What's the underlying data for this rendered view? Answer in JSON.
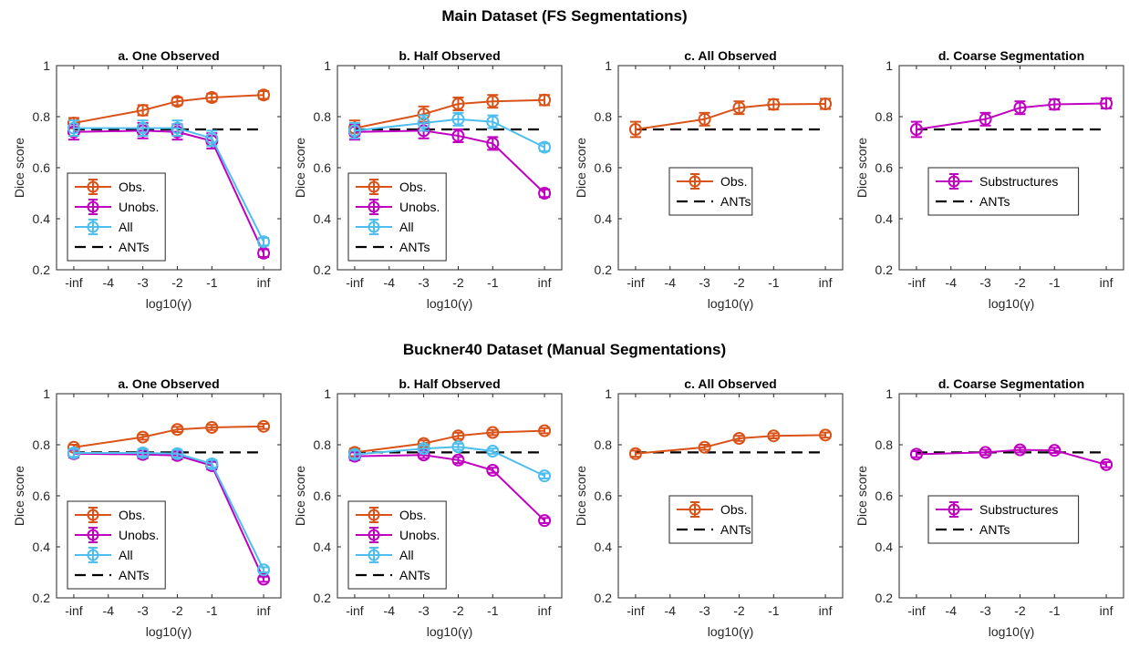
{
  "figure": {
    "rows": [
      {
        "title": "Main Dataset (FS Segmentations)",
        "charts": [
          {
            "type": "line",
            "title": "a. One Observed",
            "categories": [
              "-inf",
              "-4",
              "-3",
              "-2",
              "-1",
              "inf"
            ],
            "x": [
              -5,
              -4,
              -3,
              -2,
              -1,
              0.5
            ],
            "xlabel": "log10(γ)",
            "ylabel": "Dice score",
            "ylim": [
              0.2,
              1
            ],
            "yticks": [
              "0.2",
              "0.4",
              "0.6",
              "0.8",
              "1"
            ],
            "baseline": {
              "name": "ANTs",
              "value": 0.75
            },
            "legend": "lower-left",
            "series": [
              {
                "name": "Obs.",
                "color": "#D95319",
                "x": [
                  -5,
                  -3,
                  -2,
                  -1,
                  0.5
                ],
                "values": [
                  0.775,
                  0.825,
                  0.86,
                  0.875,
                  0.885
                ],
                "errors": [
                  0.02,
                  0.02,
                  0.015,
                  0.015,
                  0.015
                ]
              },
              {
                "name": "Unobs.",
                "color": "#C000C0",
                "x": [
                  -5,
                  -3,
                  -2,
                  -1,
                  0.5
                ],
                "values": [
                  0.74,
                  0.745,
                  0.74,
                  0.705,
                  0.265
                ],
                "errors": [
                  0.03,
                  0.03,
                  0.03,
                  0.03,
                  0.015
                ]
              },
              {
                "name": "All",
                "color": "#4DBEEE",
                "x": [
                  -5,
                  -3,
                  -2,
                  -1,
                  0.5
                ],
                "values": [
                  0.755,
                  0.755,
                  0.755,
                  0.715,
                  0.31
                ],
                "errors": [
                  0.03,
                  0.03,
                  0.03,
                  0.03,
                  0.015
                ]
              }
            ]
          },
          {
            "type": "line",
            "title": "b. Half Observed",
            "categories": [
              "-inf",
              "-4",
              "-3",
              "-2",
              "-1",
              "inf"
            ],
            "x": [
              -5,
              -4,
              -3,
              -2,
              -1,
              0.5
            ],
            "xlabel": "log10(γ)",
            "ylabel": "Dice score",
            "ylim": [
              0.2,
              1
            ],
            "yticks": [
              "0.2",
              "0.4",
              "0.6",
              "0.8",
              "1"
            ],
            "baseline": {
              "name": "ANTs",
              "value": 0.75
            },
            "legend": "lower-left",
            "series": [
              {
                "name": "Obs.",
                "color": "#D95319",
                "x": [
                  -5,
                  -3,
                  -2,
                  -1,
                  0.5
                ],
                "values": [
                  0.755,
                  0.81,
                  0.85,
                  0.86,
                  0.865
                ],
                "errors": [
                  0.03,
                  0.03,
                  0.025,
                  0.025,
                  0.02
                ]
              },
              {
                "name": "Unobs.",
                "color": "#C000C0",
                "x": [
                  -5,
                  -3,
                  -2,
                  -1,
                  0.5
                ],
                "values": [
                  0.74,
                  0.745,
                  0.725,
                  0.695,
                  0.5
                ],
                "errors": [
                  0.03,
                  0.03,
                  0.025,
                  0.025,
                  0.015
                ]
              },
              {
                "name": "All",
                "color": "#4DBEEE",
                "x": [
                  -5,
                  -3,
                  -2,
                  -1,
                  0.5
                ],
                "values": [
                  0.745,
                  0.775,
                  0.79,
                  0.78,
                  0.68
                ],
                "errors": [
                  0.03,
                  0.03,
                  0.025,
                  0.025,
                  0.015
                ]
              }
            ]
          },
          {
            "type": "line",
            "title": "c. All Observed",
            "categories": [
              "-inf",
              "-4",
              "-3",
              "-2",
              "-1",
              "inf"
            ],
            "x": [
              -5,
              -4,
              -3,
              -2,
              -1,
              0.5
            ],
            "xlabel": "log10(γ)",
            "ylabel": "Dice score",
            "ylim": [
              0.2,
              1
            ],
            "yticks": [
              "0.2",
              "0.4",
              "0.6",
              "0.8",
              "1"
            ],
            "baseline": {
              "name": "ANTs",
              "value": 0.75
            },
            "legend": "lower-left",
            "series": [
              {
                "name": "Obs.",
                "color": "#D95319",
                "x": [
                  -5,
                  -3,
                  -2,
                  -1,
                  0.5
                ],
                "values": [
                  0.75,
                  0.79,
                  0.835,
                  0.848,
                  0.85
                ],
                "errors": [
                  0.03,
                  0.025,
                  0.025,
                  0.02,
                  0.02
                ]
              }
            ]
          },
          {
            "type": "line",
            "title": "d. Coarse Segmentation",
            "categories": [
              "-inf",
              "-4",
              "-3",
              "-2",
              "-1",
              "inf"
            ],
            "x": [
              -5,
              -4,
              -3,
              -2,
              -1,
              0.5
            ],
            "xlabel": "log10(γ)",
            "ylabel": "Dice score",
            "ylim": [
              0.2,
              1
            ],
            "yticks": [
              "0.2",
              "0.4",
              "0.6",
              "0.8",
              "1"
            ],
            "baseline": {
              "name": "ANTs",
              "value": 0.75
            },
            "legend": "lower-left",
            "series": [
              {
                "name": "Substructures",
                "color": "#C000C0",
                "x": [
                  -5,
                  -3,
                  -2,
                  -1,
                  0.5
                ],
                "values": [
                  0.75,
                  0.79,
                  0.835,
                  0.848,
                  0.852
                ],
                "errors": [
                  0.03,
                  0.025,
                  0.025,
                  0.02,
                  0.02
                ]
              }
            ]
          }
        ]
      },
      {
        "title": "Buckner40 Dataset (Manual Segmentations)",
        "charts": [
          {
            "type": "line",
            "title": "a. One Observed",
            "categories": [
              "-inf",
              "-4",
              "-3",
              "-2",
              "-1",
              "inf"
            ],
            "x": [
              -5,
              -4,
              -3,
              -2,
              -1,
              0.5
            ],
            "xlabel": "log10(γ)",
            "ylabel": "Dice score",
            "ylim": [
              0.2,
              1
            ],
            "yticks": [
              "0.2",
              "0.4",
              "0.6",
              "0.8",
              "1"
            ],
            "baseline": {
              "name": "ANTs",
              "value": 0.77
            },
            "legend": "lower-left",
            "series": [
              {
                "name": "Obs.",
                "color": "#D95319",
                "x": [
                  -5,
                  -3,
                  -2,
                  -1,
                  0.5
                ],
                "values": [
                  0.79,
                  0.83,
                  0.86,
                  0.868,
                  0.872
                ],
                "errors": [
                  0.01,
                  0.01,
                  0.01,
                  0.01,
                  0.01
                ]
              },
              {
                "name": "Unobs.",
                "color": "#C000C0",
                "x": [
                  -5,
                  -3,
                  -2,
                  -1,
                  0.5
                ],
                "values": [
                  0.765,
                  0.762,
                  0.758,
                  0.718,
                  0.273
                ],
                "errors": [
                  0.015,
                  0.015,
                  0.015,
                  0.015,
                  0.01
                ]
              },
              {
                "name": "All",
                "color": "#4DBEEE",
                "x": [
                  -5,
                  -3,
                  -2,
                  -1,
                  0.5
                ],
                "values": [
                  0.768,
                  0.768,
                  0.765,
                  0.725,
                  0.31
                ],
                "errors": [
                  0.015,
                  0.015,
                  0.015,
                  0.015,
                  0.01
                ]
              }
            ]
          },
          {
            "type": "line",
            "title": "b. Half Observed",
            "categories": [
              "-inf",
              "-4",
              "-3",
              "-2",
              "-1",
              "inf"
            ],
            "x": [
              -5,
              -4,
              -3,
              -2,
              -1,
              0.5
            ],
            "xlabel": "log10(γ)",
            "ylabel": "Dice score",
            "ylim": [
              0.2,
              1
            ],
            "yticks": [
              "0.2",
              "0.4",
              "0.6",
              "0.8",
              "1"
            ],
            "baseline": {
              "name": "ANTs",
              "value": 0.77
            },
            "legend": "lower-left",
            "series": [
              {
                "name": "Obs.",
                "color": "#D95319",
                "x": [
                  -5,
                  -3,
                  -2,
                  -1,
                  0.5
                ],
                "values": [
                  0.77,
                  0.805,
                  0.835,
                  0.848,
                  0.855
                ],
                "errors": [
                  0.015,
                  0.012,
                  0.012,
                  0.01,
                  0.01
                ]
              },
              {
                "name": "Unobs.",
                "color": "#C000C0",
                "x": [
                  -5,
                  -3,
                  -2,
                  -1,
                  0.5
                ],
                "values": [
                  0.755,
                  0.76,
                  0.74,
                  0.7,
                  0.503
                ],
                "errors": [
                  0.015,
                  0.012,
                  0.012,
                  0.01,
                  0.01
                ]
              },
              {
                "name": "All",
                "color": "#4DBEEE",
                "x": [
                  -5,
                  -3,
                  -2,
                  -1,
                  0.5
                ],
                "values": [
                  0.762,
                  0.785,
                  0.792,
                  0.775,
                  0.678
                ],
                "errors": [
                  0.015,
                  0.012,
                  0.012,
                  0.01,
                  0.01
                ]
              }
            ]
          },
          {
            "type": "line",
            "title": "c. All Observed",
            "categories": [
              "-inf",
              "-4",
              "-3",
              "-2",
              "-1",
              "inf"
            ],
            "x": [
              -5,
              -4,
              -3,
              -2,
              -1,
              0.5
            ],
            "xlabel": "log10(γ)",
            "ylabel": "Dice score",
            "ylim": [
              0.2,
              1
            ],
            "yticks": [
              "0.2",
              "0.4",
              "0.6",
              "0.8",
              "1"
            ],
            "baseline": {
              "name": "ANTs",
              "value": 0.77
            },
            "legend": "lower-left",
            "series": [
              {
                "name": "Obs.",
                "color": "#D95319",
                "x": [
                  -5,
                  -3,
                  -2,
                  -1,
                  0.5
                ],
                "values": [
                  0.765,
                  0.79,
                  0.825,
                  0.835,
                  0.838
                ],
                "errors": [
                  0.012,
                  0.01,
                  0.01,
                  0.01,
                  0.01
                ]
              }
            ]
          },
          {
            "type": "line",
            "title": "d. Coarse Segmentation",
            "categories": [
              "-inf",
              "-4",
              "-3",
              "-2",
              "-1",
              "inf"
            ],
            "x": [
              -5,
              -4,
              -3,
              -2,
              -1,
              0.5
            ],
            "xlabel": "log10(γ)",
            "ylabel": "Dice score",
            "ylim": [
              0.2,
              1
            ],
            "yticks": [
              "0.2",
              "0.4",
              "0.6",
              "0.8",
              "1"
            ],
            "baseline": {
              "name": "ANTs",
              "value": 0.77
            },
            "legend": "lower-left",
            "series": [
              {
                "name": "Substructures",
                "color": "#C000C0",
                "x": [
                  -5,
                  -3,
                  -2,
                  -1,
                  0.5
                ],
                "values": [
                  0.763,
                  0.77,
                  0.78,
                  0.778,
                  0.722
                ],
                "errors": [
                  0.012,
                  0.01,
                  0.01,
                  0.01,
                  0.01
                ]
              }
            ]
          }
        ]
      }
    ]
  },
  "chart_data": [
    {
      "type": "line",
      "title": "a. One Observed",
      "dataset": "Main Dataset (FS Segmentations)"
    },
    {
      "type": "line",
      "title": "b. Half Observed",
      "dataset": "Main Dataset (FS Segmentations)"
    },
    {
      "type": "line",
      "title": "c. All Observed",
      "dataset": "Main Dataset (FS Segmentations)"
    },
    {
      "type": "line",
      "title": "d. Coarse Segmentation",
      "dataset": "Main Dataset (FS Segmentations)"
    },
    {
      "type": "line",
      "title": "a. One Observed",
      "dataset": "Buckner40 Dataset (Manual Segmentations)"
    },
    {
      "type": "line",
      "title": "b. Half Observed",
      "dataset": "Buckner40 Dataset (Manual Segmentations)"
    },
    {
      "type": "line",
      "title": "c. All Observed",
      "dataset": "Buckner40 Dataset (Manual Segmentations)"
    },
    {
      "type": "line",
      "title": "d. Coarse Segmentation",
      "dataset": "Buckner40 Dataset (Manual Segmentations)"
    }
  ]
}
